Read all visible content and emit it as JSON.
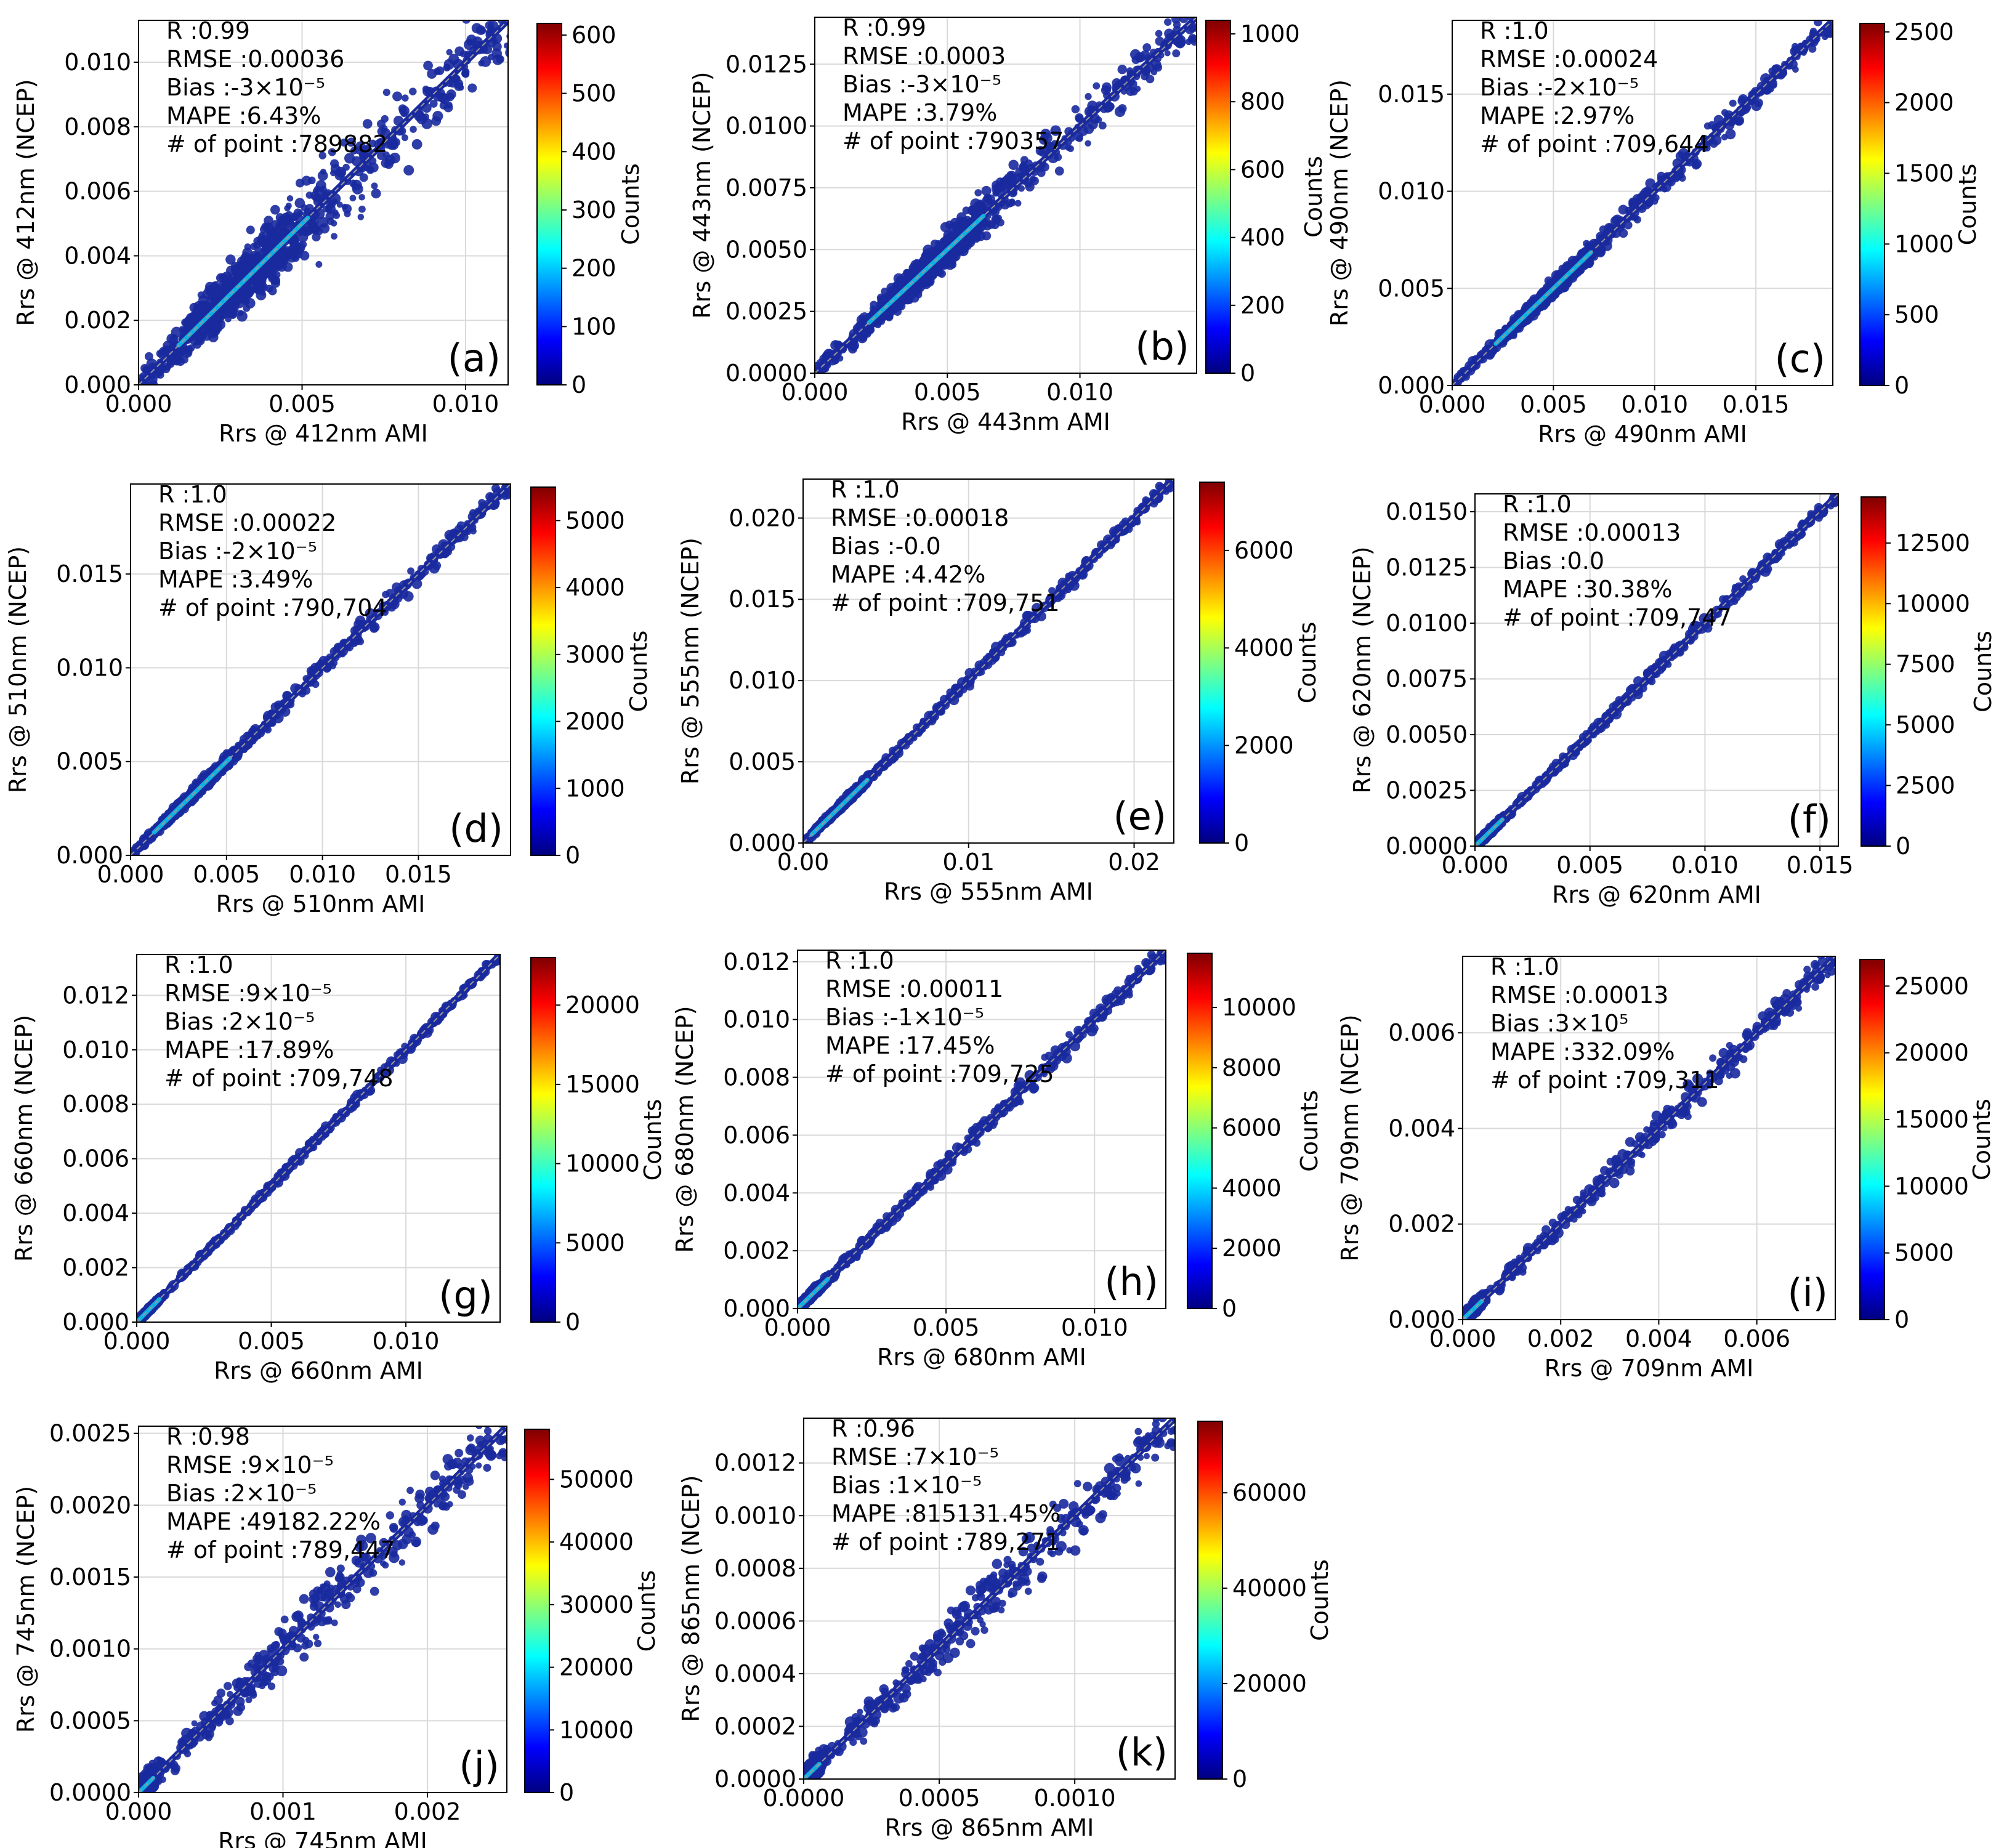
{
  "colors": {
    "colormap": [
      "#00007f",
      "#0000ff",
      "#007fff",
      "#00ffff",
      "#7fff7f",
      "#ffff00",
      "#ff7f00",
      "#ff0000",
      "#7f0000"
    ],
    "scatter": "#1a2a9e",
    "core": "#10b0e0",
    "grid": "#d9d9d9",
    "one_to_one": "#999999"
  },
  "chart_data": [
    {
      "type": "scatter",
      "panel_label": "(a)",
      "xlabel": "Rrs @ 412nm AMI",
      "ylabel": "Rrs @ 412nm (NCEP)",
      "xlim": [
        0,
        0.0113
      ],
      "ylim": [
        0,
        0.0113
      ],
      "xticks": [
        0,
        0.005,
        0.01
      ],
      "xtick_labels": [
        "0.000",
        "0.005",
        "0.010"
      ],
      "yticks": [
        0,
        0.002,
        0.004,
        0.006,
        0.008,
        0.01
      ],
      "ytick_labels": [
        "0.000",
        "0.002",
        "0.004",
        "0.006",
        "0.008",
        "0.010"
      ],
      "cbar_label": "Counts",
      "cbar_max": 620,
      "cbar_ticks": [
        0,
        100,
        200,
        300,
        400,
        500,
        600
      ],
      "cbar_tick_labels": [
        "0",
        "100",
        "200",
        "300",
        "400",
        "500",
        "600"
      ],
      "stats": [
        "R    :0.99",
        "RMSE :0.00036",
        "Bias :-3×10⁻⁵",
        "MAPE :6.43%",
        "# of point :789882"
      ],
      "density": {
        "core_x": 0.0032,
        "spread": 0.0012,
        "core_scale": 0.35
      }
    },
    {
      "type": "scatter",
      "panel_label": "(b)",
      "xlabel": "Rrs @ 443nm AMI",
      "ylabel": "Rrs @ 443nm (NCEP)",
      "xlim": [
        0,
        0.0144
      ],
      "ylim": [
        0,
        0.0144
      ],
      "xticks": [
        0,
        0.005,
        0.01
      ],
      "xtick_labels": [
        "0.000",
        "0.005",
        "0.010"
      ],
      "yticks": [
        0,
        0.0025,
        0.005,
        0.0075,
        0.01,
        0.0125
      ],
      "ytick_labels": [
        "0.0000",
        "0.0025",
        "0.0050",
        "0.0075",
        "0.0100",
        "0.0125"
      ],
      "cbar_label": "Counts",
      "cbar_max": 1040,
      "cbar_ticks": [
        0,
        200,
        400,
        600,
        800,
        1000
      ],
      "cbar_tick_labels": [
        "0",
        "200",
        "400",
        "600",
        "800",
        "1000"
      ],
      "stats": [
        "R    :0.99",
        "RMSE :0.0003",
        "Bias :-3×10⁻⁵",
        "MAPE :3.79%",
        "# of point :790357"
      ],
      "density": {
        "core_x": 0.0042,
        "spread": 0.0009,
        "core_scale": 0.3
      }
    },
    {
      "type": "scatter",
      "panel_label": "(c)",
      "xlabel": "Rrs @ 490nm AMI",
      "ylabel": "Rrs @ 490nm (NCEP)",
      "xlim": [
        0,
        0.0188
      ],
      "ylim": [
        0,
        0.0188
      ],
      "xticks": [
        0,
        0.005,
        0.01,
        0.015
      ],
      "xtick_labels": [
        "0.000",
        "0.005",
        "0.010",
        "0.015"
      ],
      "yticks": [
        0,
        0.005,
        0.01,
        0.015
      ],
      "ytick_labels": [
        "0.000",
        "0.005",
        "0.010",
        "0.015"
      ],
      "cbar_label": "Counts",
      "cbar_max": 2560,
      "cbar_ticks": [
        0,
        500,
        1000,
        1500,
        2000,
        2500
      ],
      "cbar_tick_labels": [
        "0",
        "500",
        "1000",
        "1500",
        "2000",
        "2500"
      ],
      "stats": [
        "R    :1.0",
        "RMSE :0.00024",
        "Bias :-2×10⁻⁵",
        "MAPE :2.97%",
        "# of point :709,644"
      ],
      "density": {
        "core_x": 0.0045,
        "spread": 0.0006,
        "core_scale": 0.25
      }
    },
    {
      "type": "scatter",
      "panel_label": "(d)",
      "xlabel": "Rrs @ 510nm AMI",
      "ylabel": "Rrs @ 510nm (NCEP)",
      "xlim": [
        0,
        0.0198
      ],
      "ylim": [
        0,
        0.0198
      ],
      "xticks": [
        0,
        0.005,
        0.01,
        0.015
      ],
      "xtick_labels": [
        "0.000",
        "0.005",
        "0.010",
        "0.015"
      ],
      "yticks": [
        0,
        0.005,
        0.01,
        0.015
      ],
      "ytick_labels": [
        "0.000",
        "0.005",
        "0.010",
        "0.015"
      ],
      "cbar_label": "Counts",
      "cbar_max": 5500,
      "cbar_ticks": [
        0,
        1000,
        2000,
        3000,
        4000,
        5000
      ],
      "cbar_tick_labels": [
        "0",
        "1000",
        "2000",
        "3000",
        "4000",
        "5000"
      ],
      "stats": [
        "R    :1.0",
        "RMSE :0.00022",
        "Bias :-2×10⁻⁵",
        "MAPE :3.49%",
        "# of point :790,704"
      ],
      "density": {
        "core_x": 0.0032,
        "spread": 0.0005,
        "core_scale": 0.2
      }
    },
    {
      "type": "scatter",
      "panel_label": "(e)",
      "xlabel": "Rrs @ 555nm AMI",
      "ylabel": "Rrs @ 555nm (NCEP)",
      "xlim": [
        0,
        0.0224
      ],
      "ylim": [
        0,
        0.0224
      ],
      "xticks": [
        0,
        0.01,
        0.02
      ],
      "xtick_labels": [
        "0.00",
        "0.01",
        "0.02"
      ],
      "yticks": [
        0,
        0.005,
        0.01,
        0.015,
        0.02
      ],
      "ytick_labels": [
        "0.000",
        "0.005",
        "0.010",
        "0.015",
        "0.020"
      ],
      "cbar_label": "Counts",
      "cbar_max": 7400,
      "cbar_ticks": [
        0,
        2000,
        4000,
        6000
      ],
      "cbar_tick_labels": [
        "0",
        "2000",
        "4000",
        "6000"
      ],
      "stats": [
        "R    :1.0",
        "RMSE :0.00018",
        "Bias :-0.0",
        "MAPE :4.42%",
        "# of point :709,751"
      ],
      "density": {
        "core_x": 0.0022,
        "spread": 0.0004,
        "core_scale": 0.15
      }
    },
    {
      "type": "scatter",
      "panel_label": "(f)",
      "xlabel": "Rrs @ 620nm AMI",
      "ylabel": "Rrs @ 620nm (NCEP)",
      "xlim": [
        0,
        0.0158
      ],
      "ylim": [
        0,
        0.0158
      ],
      "xticks": [
        0,
        0.005,
        0.01,
        0.015
      ],
      "xtick_labels": [
        "0.000",
        "0.005",
        "0.010",
        "0.015"
      ],
      "yticks": [
        0,
        0.0025,
        0.005,
        0.0075,
        0.01,
        0.0125,
        0.015
      ],
      "ytick_labels": [
        "0.0000",
        "0.0025",
        "0.0050",
        "0.0075",
        "0.0100",
        "0.0125",
        "0.0150"
      ],
      "cbar_label": "Counts",
      "cbar_max": 14400,
      "cbar_ticks": [
        0,
        2500,
        5000,
        7500,
        10000,
        12500
      ],
      "cbar_tick_labels": [
        "0",
        "2500",
        "5000",
        "7500",
        "10000",
        "12500"
      ],
      "stats": [
        "R    :1.0",
        "RMSE :0.00013",
        "Bias :0.0",
        "MAPE :30.38%",
        "# of point :709,747"
      ],
      "density": {
        "core_x": 0.0004,
        "spread": 0.0003,
        "core_scale": 0.1
      }
    },
    {
      "type": "scatter",
      "panel_label": "(g)",
      "xlabel": "Rrs @ 660nm AMI",
      "ylabel": "Rrs @ 660nm (NCEP)",
      "xlim": [
        0,
        0.0135
      ],
      "ylim": [
        0,
        0.0135
      ],
      "xticks": [
        0,
        0.005,
        0.01
      ],
      "xtick_labels": [
        "0.000",
        "0.005",
        "0.010"
      ],
      "yticks": [
        0,
        0.002,
        0.004,
        0.006,
        0.008,
        0.01,
        0.012
      ],
      "ytick_labels": [
        "0.000",
        "0.002",
        "0.004",
        "0.006",
        "0.008",
        "0.010",
        "0.012"
      ],
      "cbar_label": "Counts",
      "cbar_max": 23000,
      "cbar_ticks": [
        0,
        5000,
        10000,
        15000,
        20000
      ],
      "cbar_tick_labels": [
        "0",
        "5000",
        "10000",
        "15000",
        "20000"
      ],
      "stats": [
        "R    :1.0",
        "RMSE :9×10⁻⁵",
        "Bias :2×10⁻⁵",
        "MAPE :17.89%",
        "# of point :709,748"
      ],
      "density": {
        "core_x": 0.0003,
        "spread": 0.00015,
        "core_scale": 0.08
      }
    },
    {
      "type": "scatter",
      "panel_label": "(h)",
      "xlabel": "Rrs @ 680nm AMI",
      "ylabel": "Rrs @ 680nm (NCEP)",
      "xlim": [
        0,
        0.0124
      ],
      "ylim": [
        0,
        0.0124
      ],
      "xticks": [
        0,
        0.005,
        0.01
      ],
      "xtick_labels": [
        "0.000",
        "0.005",
        "0.010"
      ],
      "yticks": [
        0,
        0.002,
        0.004,
        0.006,
        0.008,
        0.01,
        0.012
      ],
      "ytick_labels": [
        "0.000",
        "0.002",
        "0.004",
        "0.006",
        "0.008",
        "0.010",
        "0.012"
      ],
      "cbar_label": "Counts",
      "cbar_max": 11800,
      "cbar_ticks": [
        0,
        2000,
        4000,
        6000,
        8000,
        10000
      ],
      "cbar_tick_labels": [
        "0",
        "2000",
        "4000",
        "6000",
        "8000",
        "10000"
      ],
      "stats": [
        "R    :1.0",
        "RMSE :0.00011",
        "Bias :-1×10⁻⁵",
        "MAPE :17.45%",
        "# of point :709,725"
      ],
      "density": {
        "core_x": 0.0004,
        "spread": 0.0003,
        "core_scale": 0.1
      }
    },
    {
      "type": "scatter",
      "panel_label": "(i)",
      "xlabel": "Rrs @ 709nm AMI",
      "ylabel": "Rrs @ 709nm (NCEP)",
      "xlim": [
        0,
        0.0076
      ],
      "ylim": [
        0,
        0.0076
      ],
      "xticks": [
        0,
        0.002,
        0.004,
        0.006
      ],
      "xtick_labels": [
        "0.000",
        "0.002",
        "0.004",
        "0.006"
      ],
      "yticks": [
        0,
        0.002,
        0.004,
        0.006
      ],
      "ytick_labels": [
        "0.000",
        "0.002",
        "0.004",
        "0.006"
      ],
      "cbar_label": "Counts",
      "cbar_max": 27000,
      "cbar_ticks": [
        0,
        5000,
        10000,
        15000,
        20000,
        25000
      ],
      "cbar_tick_labels": [
        "0",
        "5000",
        "10000",
        "15000",
        "20000",
        "25000"
      ],
      "stats": [
        "R    :1.0",
        "RMSE :0.00013",
        "Bias :3×10⁵",
        "MAPE :332.09%",
        "# of point :709,311"
      ],
      "density": {
        "core_x": 0.0002,
        "spread": 0.0003,
        "core_scale": 0.05
      }
    },
    {
      "type": "scatter",
      "panel_label": "(j)",
      "xlabel": "Rrs @ 745nm AMI",
      "ylabel": "Rrs @ 745nm (NCEP)",
      "xlim": [
        0,
        0.00255
      ],
      "ylim": [
        0,
        0.00255
      ],
      "xticks": [
        0,
        0.001,
        0.002
      ],
      "xtick_labels": [
        "0.000",
        "0.001",
        "0.002"
      ],
      "yticks": [
        0,
        0.0005,
        0.001,
        0.0015,
        0.002,
        0.0025
      ],
      "ytick_labels": [
        "0.0000",
        "0.0005",
        "0.0010",
        "0.0015",
        "0.0020",
        "0.0025"
      ],
      "cbar_label": "Counts",
      "cbar_max": 58000,
      "cbar_ticks": [
        0,
        10000,
        20000,
        30000,
        40000,
        50000
      ],
      "cbar_tick_labels": [
        "0",
        "10000",
        "20000",
        "30000",
        "40000",
        "50000"
      ],
      "stats": [
        "R    :0.98",
        "RMSE :9×10⁻⁵",
        "Bias :2×10⁻⁵",
        "MAPE :49182.22%",
        "# of point :789,447"
      ],
      "density": {
        "core_x": 5e-05,
        "spread": 0.0002,
        "core_scale": 0.04
      }
    },
    {
      "type": "scatter",
      "panel_label": "(k)",
      "xlabel": "Rrs @ 865nm AMI",
      "ylabel": "Rrs @ 865nm (NCEP)",
      "xlim": [
        0,
        0.00137
      ],
      "ylim": [
        0,
        0.00137
      ],
      "xticks": [
        0,
        0.0005,
        0.001
      ],
      "xtick_labels": [
        "0.0000",
        "0.0005",
        "0.0010"
      ],
      "yticks": [
        0,
        0.0002,
        0.0004,
        0.0006,
        0.0008,
        0.001,
        0.0012
      ],
      "ytick_labels": [
        "0.0000",
        "0.0002",
        "0.0004",
        "0.0006",
        "0.0008",
        "0.0010",
        "0.0012"
      ],
      "cbar_label": "Counts",
      "cbar_max": 75000,
      "cbar_ticks": [
        0,
        20000,
        40000,
        60000
      ],
      "cbar_tick_labels": [
        "0",
        "20000",
        "40000",
        "60000"
      ],
      "stats": [
        "R    :0.96",
        "RMSE :7×10⁻⁵",
        "Bias :1×10⁻⁵",
        "MAPE :815131.45%",
        "# of point :789,271"
      ],
      "density": {
        "core_x": 3e-05,
        "spread": 0.0001,
        "core_scale": 0.04
      }
    }
  ]
}
